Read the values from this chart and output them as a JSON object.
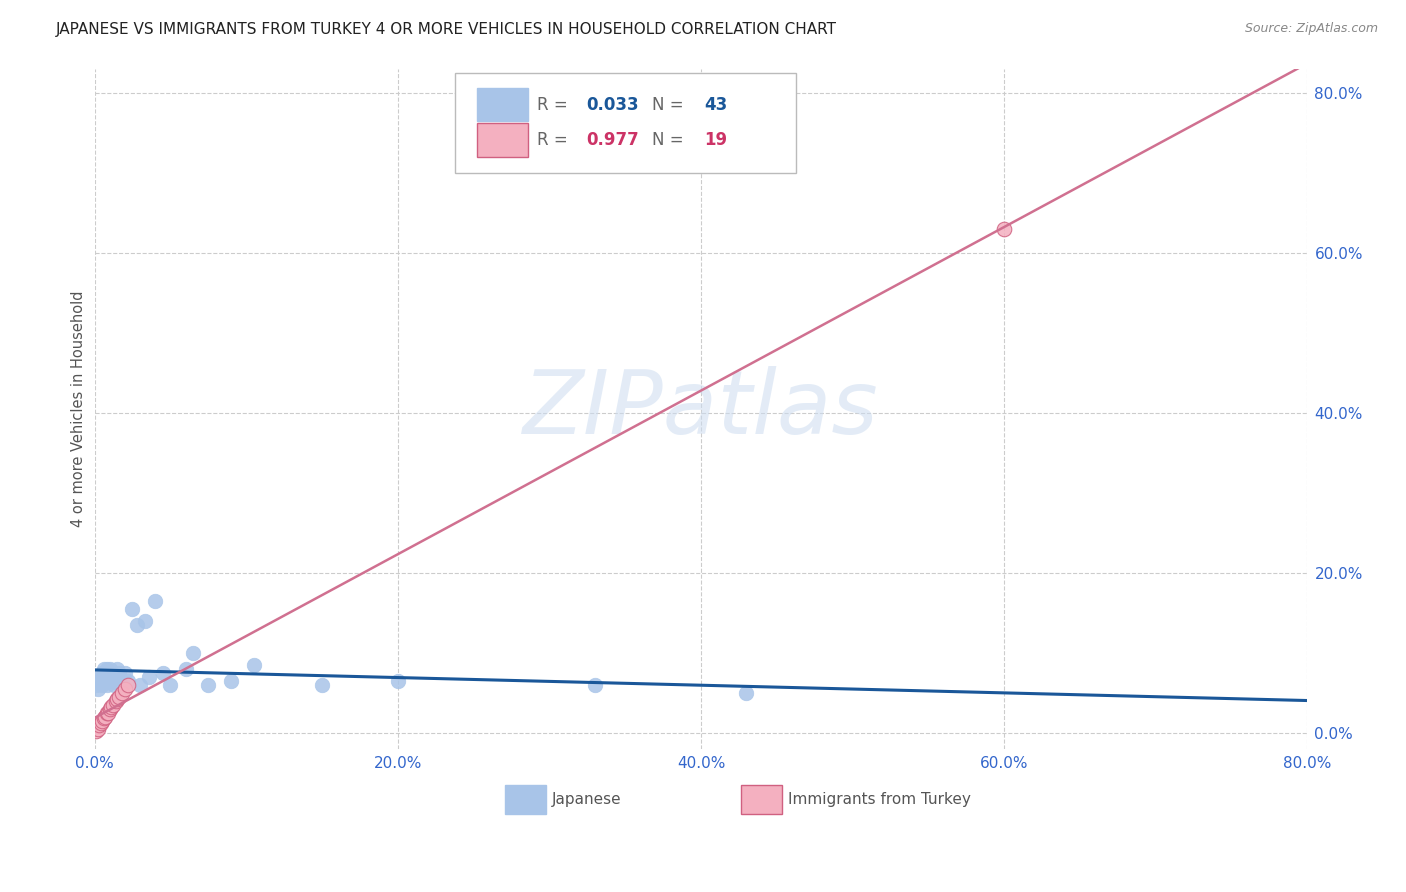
{
  "title": "JAPANESE VS IMMIGRANTS FROM TURKEY 4 OR MORE VEHICLES IN HOUSEHOLD CORRELATION CHART",
  "source": "Source: ZipAtlas.com",
  "ylabel": "4 or more Vehicles in Household",
  "xlim": [
    0.0,
    0.8
  ],
  "ylim": [
    -0.02,
    0.83
  ],
  "tick_vals": [
    0.0,
    0.2,
    0.4,
    0.6,
    0.8
  ],
  "tick_labels": [
    "0.0%",
    "20.0%",
    "40.0%",
    "60.0%",
    "80.0%"
  ],
  "watermark": "ZIPatlas",
  "japanese_face_color": "#a8c4e8",
  "japanese_line_color": "#1a5799",
  "turkey_face_color": "#f4b0c0",
  "turkey_edge_color": "#d06080",
  "turkey_line_color": "#d07090",
  "japanese_R": "0.033",
  "japanese_N": "43",
  "turkey_R": "0.977",
  "turkey_N": "19",
  "background_color": "#ffffff",
  "grid_color": "#cccccc"
}
